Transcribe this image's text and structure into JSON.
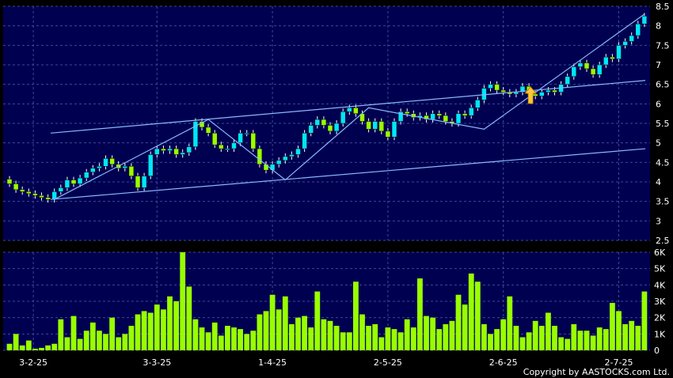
{
  "copyright": "Copyright by AASTOCKS.com Ltd.",
  "chart_data": [
    {
      "type": "candlestick",
      "panel": "price",
      "ylim": [
        2.5,
        8.5
      ],
      "y_ticks": [
        "2.5",
        "3",
        "3.5",
        "4",
        "4.5",
        "5",
        "5.5",
        "6",
        "6.5",
        "7",
        "7.5",
        "8",
        "8.5"
      ],
      "grid": true,
      "colors": {
        "up": "#00e5ff",
        "down": "#99ff00",
        "line": "#8ab8ff",
        "background": "#000050"
      },
      "closes": [
        3.95,
        3.8,
        3.75,
        3.7,
        3.65,
        3.6,
        3.55,
        3.75,
        3.85,
        4.05,
        3.95,
        4.1,
        4.25,
        4.35,
        4.4,
        4.6,
        4.45,
        4.35,
        4.4,
        4.15,
        3.85,
        4.15,
        4.7,
        4.85,
        4.8,
        4.85,
        4.7,
        4.75,
        4.9,
        5.55,
        5.4,
        5.25,
        4.95,
        4.85,
        4.85,
        5.0,
        5.25,
        5.25,
        4.85,
        4.45,
        4.3,
        4.45,
        4.55,
        4.65,
        4.7,
        4.85,
        5.25,
        5.45,
        5.6,
        5.45,
        5.3,
        5.5,
        5.8,
        5.9,
        5.75,
        5.55,
        5.35,
        5.55,
        5.3,
        5.15,
        5.55,
        5.8,
        5.75,
        5.65,
        5.7,
        5.6,
        5.75,
        5.7,
        5.55,
        5.5,
        5.75,
        5.7,
        5.9,
        6.1,
        6.4,
        6.5,
        6.35,
        6.3,
        6.25,
        6.3,
        6.45,
        6.25,
        6.2,
        6.3,
        6.35,
        6.3,
        6.5,
        6.7,
        6.95,
        7.05,
        6.9,
        6.75,
        7.0,
        7.2,
        7.15,
        7.5,
        7.6,
        7.75,
        8.05,
        8.25
      ],
      "trendlines": [
        {
          "points": [
            [
              "3-2-25",
              5.25
            ],
            [
              "2-7-25",
              6.6
            ]
          ]
        },
        {
          "points": [
            [
              "3-2-25",
              3.55
            ],
            [
              "2-7-25",
              4.85
            ]
          ]
        },
        {
          "points": [
            [
              "3-2-25",
              3.55
            ],
            [
              "1-4-25",
              5.6
            ],
            [
              "1-4-25",
              4.05
            ],
            [
              "2-5-25",
              5.9
            ],
            [
              "2-6-25",
              5.35
            ],
            [
              "2-7-25",
              8.3
            ]
          ]
        }
      ],
      "annotation": {
        "type": "arrow",
        "color": "#ffc83a",
        "x_index": 81,
        "y": 6.15
      }
    },
    {
      "type": "bar",
      "panel": "volume",
      "ylim": [
        0,
        6000
      ],
      "y_ticks": [
        "0",
        "1K",
        "2K",
        "3K",
        "4K",
        "5K",
        "6K"
      ],
      "grid": true,
      "x_ticks": [
        "3-2-25",
        "3-3-25",
        "1-4-25",
        "2-5-25",
        "2-6-25",
        "2-7-25"
      ],
      "colors": {
        "bars": "#99ff00",
        "background": "#000050"
      },
      "values": [
        400,
        1000,
        300,
        600,
        100,
        150,
        300,
        400,
        1900,
        800,
        2100,
        700,
        1200,
        1700,
        1200,
        1000,
        2000,
        800,
        1000,
        1500,
        2200,
        2400,
        2300,
        2800,
        2500,
        3300,
        3000,
        6000,
        3900,
        1900,
        1400,
        1100,
        1700,
        900,
        1500,
        1400,
        1300,
        1000,
        1200,
        2200,
        2400,
        3400,
        2500,
        3300,
        1600,
        2000,
        2100,
        1400,
        3600,
        1900,
        1800,
        1500,
        1100,
        1100,
        4200,
        2200,
        1500,
        1600,
        800,
        1400,
        1300,
        1100,
        1900,
        1400,
        4400,
        2100,
        2000,
        1300,
        1600,
        1800,
        3400,
        2800,
        4700,
        4200,
        1600,
        1000,
        1300,
        1900,
        3300,
        1500,
        800,
        1100,
        1800,
        1500,
        2300,
        1500,
        800,
        700,
        1600,
        1200,
        1200,
        900,
        1400,
        1300,
        2900,
        2400,
        1600,
        1800,
        1500,
        3600
      ]
    }
  ]
}
